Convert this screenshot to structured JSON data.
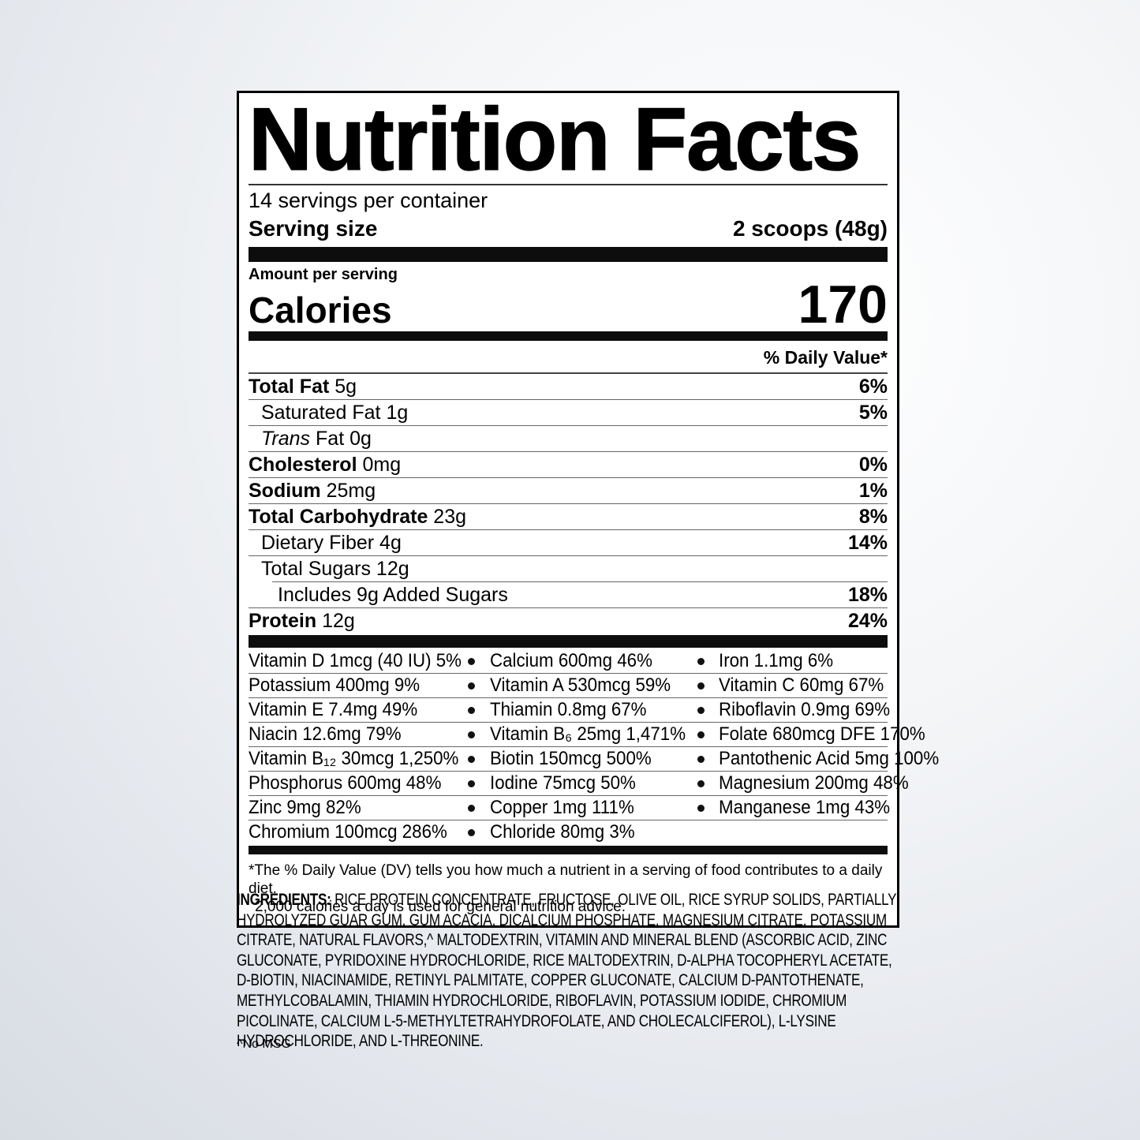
{
  "label": {
    "title": "Nutrition Facts",
    "servings_per_container": "14 servings per container",
    "serving_size_label": "Serving size",
    "serving_size_value": "2 scoops (48g)",
    "amount_per_serving": "Amount per serving",
    "calories_label": "Calories",
    "calories_value": "170",
    "daily_value_header": "% Daily Value*",
    "rows": [
      {
        "name": "Total Fat",
        "amount": "5g",
        "dv": "6%"
      },
      {
        "name": "Saturated Fat",
        "amount": "1g",
        "dv": "5%"
      },
      {
        "name_italic": "Trans",
        "name": "Fat",
        "amount": "0g",
        "dv": ""
      },
      {
        "name": "Cholesterol",
        "amount": "0mg",
        "dv": "0%"
      },
      {
        "name": "Sodium",
        "amount": "25mg",
        "dv": "1%"
      },
      {
        "name": "Total Carbohydrate",
        "amount": "23g",
        "dv": "8%"
      },
      {
        "name": "Dietary Fiber",
        "amount": "4g",
        "dv": "14%"
      },
      {
        "name": "Total Sugars",
        "amount": "12g",
        "dv": ""
      },
      {
        "name": "Includes 9g Added Sugars",
        "amount": "",
        "dv": "18%"
      },
      {
        "name": "Protein",
        "amount": "12g",
        "dv": "24%"
      }
    ],
    "vitamins": [
      [
        "Vitamin D 1mcg (40 IU) 5%",
        "Calcium 600mg 46%",
        "Iron 1.1mg 6%"
      ],
      [
        "Potassium 400mg 9%",
        "Vitamin A 530mcg 59%",
        "Vitamin C 60mg 67%"
      ],
      [
        "Vitamin E 7.4mg 49%",
        "Thiamin 0.8mg 67%",
        "Riboflavin 0.9mg 69%"
      ],
      [
        "Niacin 12.6mg 79%",
        "Vitamin B₆ 25mg 1,471%",
        "Folate 680mcg DFE 170%"
      ],
      [
        "Vitamin B₁₂ 30mcg 1,250%",
        "Biotin 150mcg 500%",
        "Pantothenic Acid 5mg 100%"
      ],
      [
        "Phosphorus 600mg 48%",
        "Iodine 75mcg 50%",
        "Magnesium 200mg 48%"
      ],
      [
        "Zinc 9mg 82%",
        "Copper 1mg 111%",
        "Manganese 1mg 43%"
      ],
      [
        "Chromium 100mcg 286%",
        "Chloride 80mg 3%",
        ""
      ]
    ],
    "footnote_line1": "*The % Daily Value (DV) tells you how much a nutrient in a serving of food contributes to a daily diet.",
    "footnote_line2": "2,000 calories a day is used for general nutrition advice."
  },
  "ingredients": {
    "heading": "INGREDIENTS:",
    "text": "RICE PROTEIN CONCENTRATE, FRUCTOSE, OLIVE OIL, RICE SYRUP SOLIDS, PARTIALLY HYDROLYZED GUAR GUM, GUM ACACIA, DICALCIUM PHOSPHATE, MAGNESIUM CITRATE, POTASSIUM CITRATE, NATURAL FLAVORS,^ MALTODEXTRIN, VITAMIN AND MINERAL BLEND (ASCORBIC ACID, ZINC GLUCONATE, PYRIDOXINE HYDROCHLORIDE, RICE MALTODEXTRIN, D-ALPHA TOCOPHERYL ACETATE, D-BIOTIN, NIACINAMIDE, RETINYL PALMITATE, COPPER GLUCONATE, CALCIUM D-PANTOTHENATE, METHYLCOBALAMIN, THIAMIN HYDROCHLORIDE, RIBOFLAVIN, POTASSIUM IODIDE, CHROMIUM PICOLINATE, CALCIUM L-5-METHYLTETRAHYDROFOLATE, AND CHOLECALCIFEROL), L-LYSINE HYDROCHLORIDE, AND L-THREONINE."
  },
  "footnotes": {
    "no_msg": "^No MSG"
  },
  "colors": {
    "label_background": "#ffffff",
    "text": "#000000",
    "divider_bar": "#0d0d0d"
  }
}
